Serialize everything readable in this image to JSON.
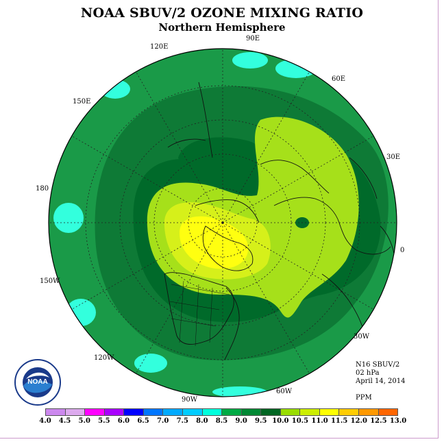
{
  "title": "NOAA SBUV/2 OZONE MIXING RATIO",
  "subtitle": "Northern Hemisphere",
  "longitude_labels": {
    "e120": "120E",
    "e90": "90E",
    "e60": "60E",
    "e30": "30E",
    "zero": "0",
    "w30": "30W",
    "w60": "60W",
    "w90": "90W",
    "w120": "120W",
    "w150": "150W",
    "d180": "180",
    "e150": "150E"
  },
  "info": {
    "instrument": "N16 SBUV/2",
    "level": "02 hPa",
    "date": "April 14, 2014",
    "units": "PPM"
  },
  "colorbar": {
    "ticks": [
      "4.0",
      "4.5",
      "5.0",
      "5.5",
      "6.0",
      "6.5",
      "7.0",
      "7.5",
      "8.0",
      "8.5",
      "9.0",
      "9.5",
      "10.0",
      "10.5",
      "11.0",
      "11.5",
      "12.0",
      "12.5",
      "13.0"
    ],
    "colors": [
      "#cc88ee",
      "#ddaaee",
      "#ff00ff",
      "#aa00ff",
      "#0000ff",
      "#0077ff",
      "#00aaff",
      "#00ccff",
      "#00ffdd",
      "#00aa44",
      "#008833",
      "#006622",
      "#99dd00",
      "#ccee00",
      "#ffff00",
      "#ffcc00",
      "#ff9900",
      "#ff6600",
      "#ff0000",
      "#884422"
    ]
  },
  "legend_colors": {
    "c7_5_8": "#33ffdd",
    "c8_8_5": "#1a9a48",
    "c8_5_9": "#0e7a36",
    "c9_9_5": "#006a2a",
    "c9_5_10": "#a6e01a",
    "c10_10_5": "#d6f01a",
    "c10_5_11": "#ffff10"
  },
  "logo": {
    "text": "NOAA"
  }
}
